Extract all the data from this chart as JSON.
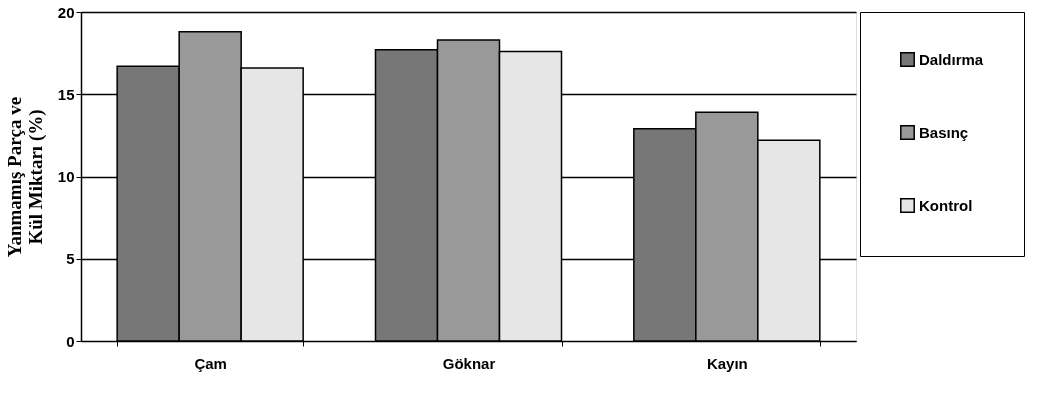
{
  "chart_data": {
    "type": "bar",
    "ylabel": "Yanmamış Parça ve\nKül Miktarı (%)",
    "categories": [
      "Çam",
      "Göknar",
      "Kayın"
    ],
    "series": [
      {
        "name": "Daldırma",
        "color": "#777777",
        "values": [
          16.7,
          17.7,
          12.9
        ]
      },
      {
        "name": "Basınç",
        "color": "#999999",
        "values": [
          18.8,
          18.3,
          13.9
        ]
      },
      {
        "name": "Kontrol",
        "color": "#e6e6e6",
        "values": [
          16.6,
          17.6,
          12.2
        ]
      }
    ],
    "ylim": [
      0,
      20
    ],
    "yticks": [
      0,
      5,
      10,
      15,
      20
    ],
    "grid": "y",
    "legend": "right"
  }
}
